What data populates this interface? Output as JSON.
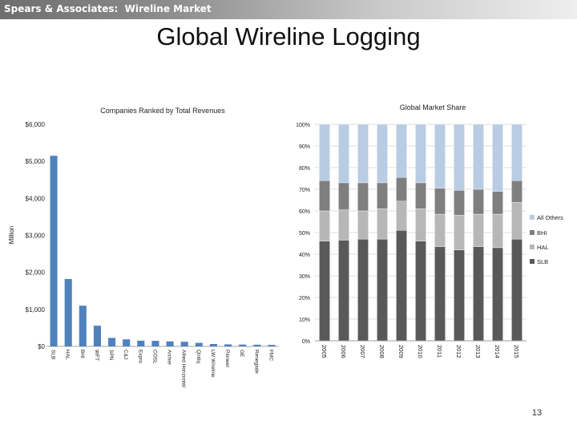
{
  "header": {
    "title": "Spears & Associates:  Wireline Market"
  },
  "slide": {
    "title": "Global Wireline Logging",
    "page_number": "13"
  },
  "colors": {
    "header_gradient": [
      "#6e6e6e",
      "#eeeeee"
    ],
    "bar": "#4f81bd",
    "slb": "#595959",
    "hal": "#b7b7b7",
    "bhi": "#7f7f7f",
    "others": "#b8cce4"
  },
  "chart_data": [
    {
      "type": "bar",
      "title": "Companies Ranked by Total Revenues",
      "ylabel": "Million",
      "ylim": [
        0,
        6000
      ],
      "yticks": [
        0,
        1000,
        2000,
        3000,
        4000,
        5000,
        6000
      ],
      "ytick_labels": [
        "$0",
        "$1,000",
        "$2,000",
        "$3,000",
        "$4,000",
        "$5,000",
        "$6,000"
      ],
      "categories": [
        "SLB",
        "HAL",
        "BHI",
        "WFT",
        "SPN",
        "C&J",
        "Expro",
        "COSL",
        "Archer",
        "Allied Horizontal",
        "Qintiq",
        "LW Wireline",
        "Pioneer",
        "GE",
        "Renegade",
        "FMC"
      ],
      "values": [
        5150,
        1820,
        1100,
        560,
        230,
        190,
        155,
        150,
        135,
        125,
        95,
        65,
        55,
        50,
        45,
        40
      ],
      "grid": false
    },
    {
      "type": "bar",
      "stacked": true,
      "title": "Global Market Share",
      "ylim": [
        0,
        100
      ],
      "yticks": [
        0,
        10,
        20,
        30,
        40,
        50,
        60,
        70,
        80,
        90,
        100
      ],
      "ytick_labels": [
        "0%",
        "10%",
        "20%",
        "30%",
        "40%",
        "50%",
        "60%",
        "70%",
        "80%",
        "90%",
        "100%"
      ],
      "categories": [
        "2005",
        "2006",
        "2007",
        "2008",
        "2009",
        "2010",
        "2011",
        "2012",
        "2013",
        "2014",
        "2015"
      ],
      "series": [
        {
          "name": "SLB",
          "values": [
            46,
            46.5,
            47,
            47,
            51,
            46,
            43.5,
            42,
            43.5,
            43,
            47
          ]
        },
        {
          "name": "HAL",
          "values": [
            14,
            14,
            13,
            14,
            13.5,
            15,
            15,
            16,
            15,
            15.5,
            17
          ]
        },
        {
          "name": "BHI",
          "values": [
            14,
            12.5,
            13,
            12,
            11,
            12,
            12,
            11.5,
            11.5,
            10.5,
            10
          ]
        },
        {
          "name": "All Others",
          "values": [
            26,
            27,
            27,
            27,
            24.5,
            27,
            29.5,
            30.5,
            30,
            31,
            26
          ]
        }
      ],
      "legend": {
        "position": "right",
        "entries": [
          "All Others",
          "BHI",
          "HAL",
          "SLB"
        ]
      },
      "grid": true
    }
  ]
}
